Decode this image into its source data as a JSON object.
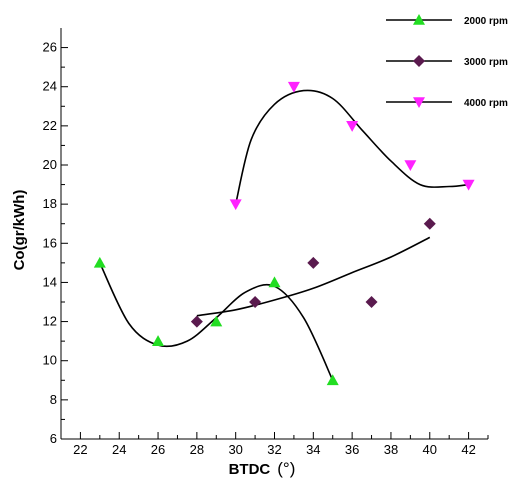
{
  "chart_data": {
    "type": "scatter",
    "xlabel": "BTDC",
    "xlabel_unit": "(°)",
    "ylabel": "Co(gr/kWh)",
    "xlim": [
      21,
      43
    ],
    "ylim": [
      6,
      27
    ],
    "xticks": [
      22,
      24,
      26,
      28,
      30,
      32,
      34,
      36,
      38,
      40,
      42
    ],
    "yticks": [
      6,
      8,
      10,
      12,
      14,
      16,
      18,
      20,
      22,
      24,
      26
    ],
    "grid": false,
    "legend_position": "top-right",
    "series": [
      {
        "name": "2000 rpm",
        "marker": "triangle-up",
        "color": "#22dd22",
        "x": [
          23,
          26,
          29,
          32,
          35
        ],
        "y": [
          15,
          11,
          12,
          14,
          9
        ],
        "fit_curve": [
          [
            23,
            15
          ],
          [
            24.5,
            11.9
          ],
          [
            26,
            10.8
          ],
          [
            27.5,
            11.0
          ],
          [
            29,
            12.2
          ],
          [
            30.5,
            13.5
          ],
          [
            32,
            13.8
          ],
          [
            33.5,
            12.2
          ],
          [
            35,
            9.0
          ]
        ]
      },
      {
        "name": "3000 rpm",
        "marker": "diamond",
        "color": "#5a1a4e",
        "x": [
          28,
          31,
          34,
          37,
          40
        ],
        "y": [
          12,
          13,
          15,
          13,
          17
        ],
        "fit_curve": [
          [
            28,
            12.3
          ],
          [
            30,
            12.6
          ],
          [
            32,
            13.1
          ],
          [
            34,
            13.7
          ],
          [
            36,
            14.5
          ],
          [
            38,
            15.3
          ],
          [
            40,
            16.3
          ]
        ]
      },
      {
        "name": "4000 rpm",
        "marker": "triangle-down",
        "color": "#ff22ff",
        "x": [
          30,
          33,
          36,
          39,
          42
        ],
        "y": [
          18,
          24,
          22,
          20,
          19
        ],
        "fit_curve": [
          [
            30,
            18.0
          ],
          [
            30.8,
            21.3
          ],
          [
            32,
            23.1
          ],
          [
            33.5,
            23.8
          ],
          [
            35,
            23.4
          ],
          [
            36.5,
            21.8
          ],
          [
            38,
            20.2
          ],
          [
            39.5,
            19.0
          ],
          [
            41,
            18.9
          ],
          [
            42,
            19.0
          ]
        ]
      }
    ]
  }
}
